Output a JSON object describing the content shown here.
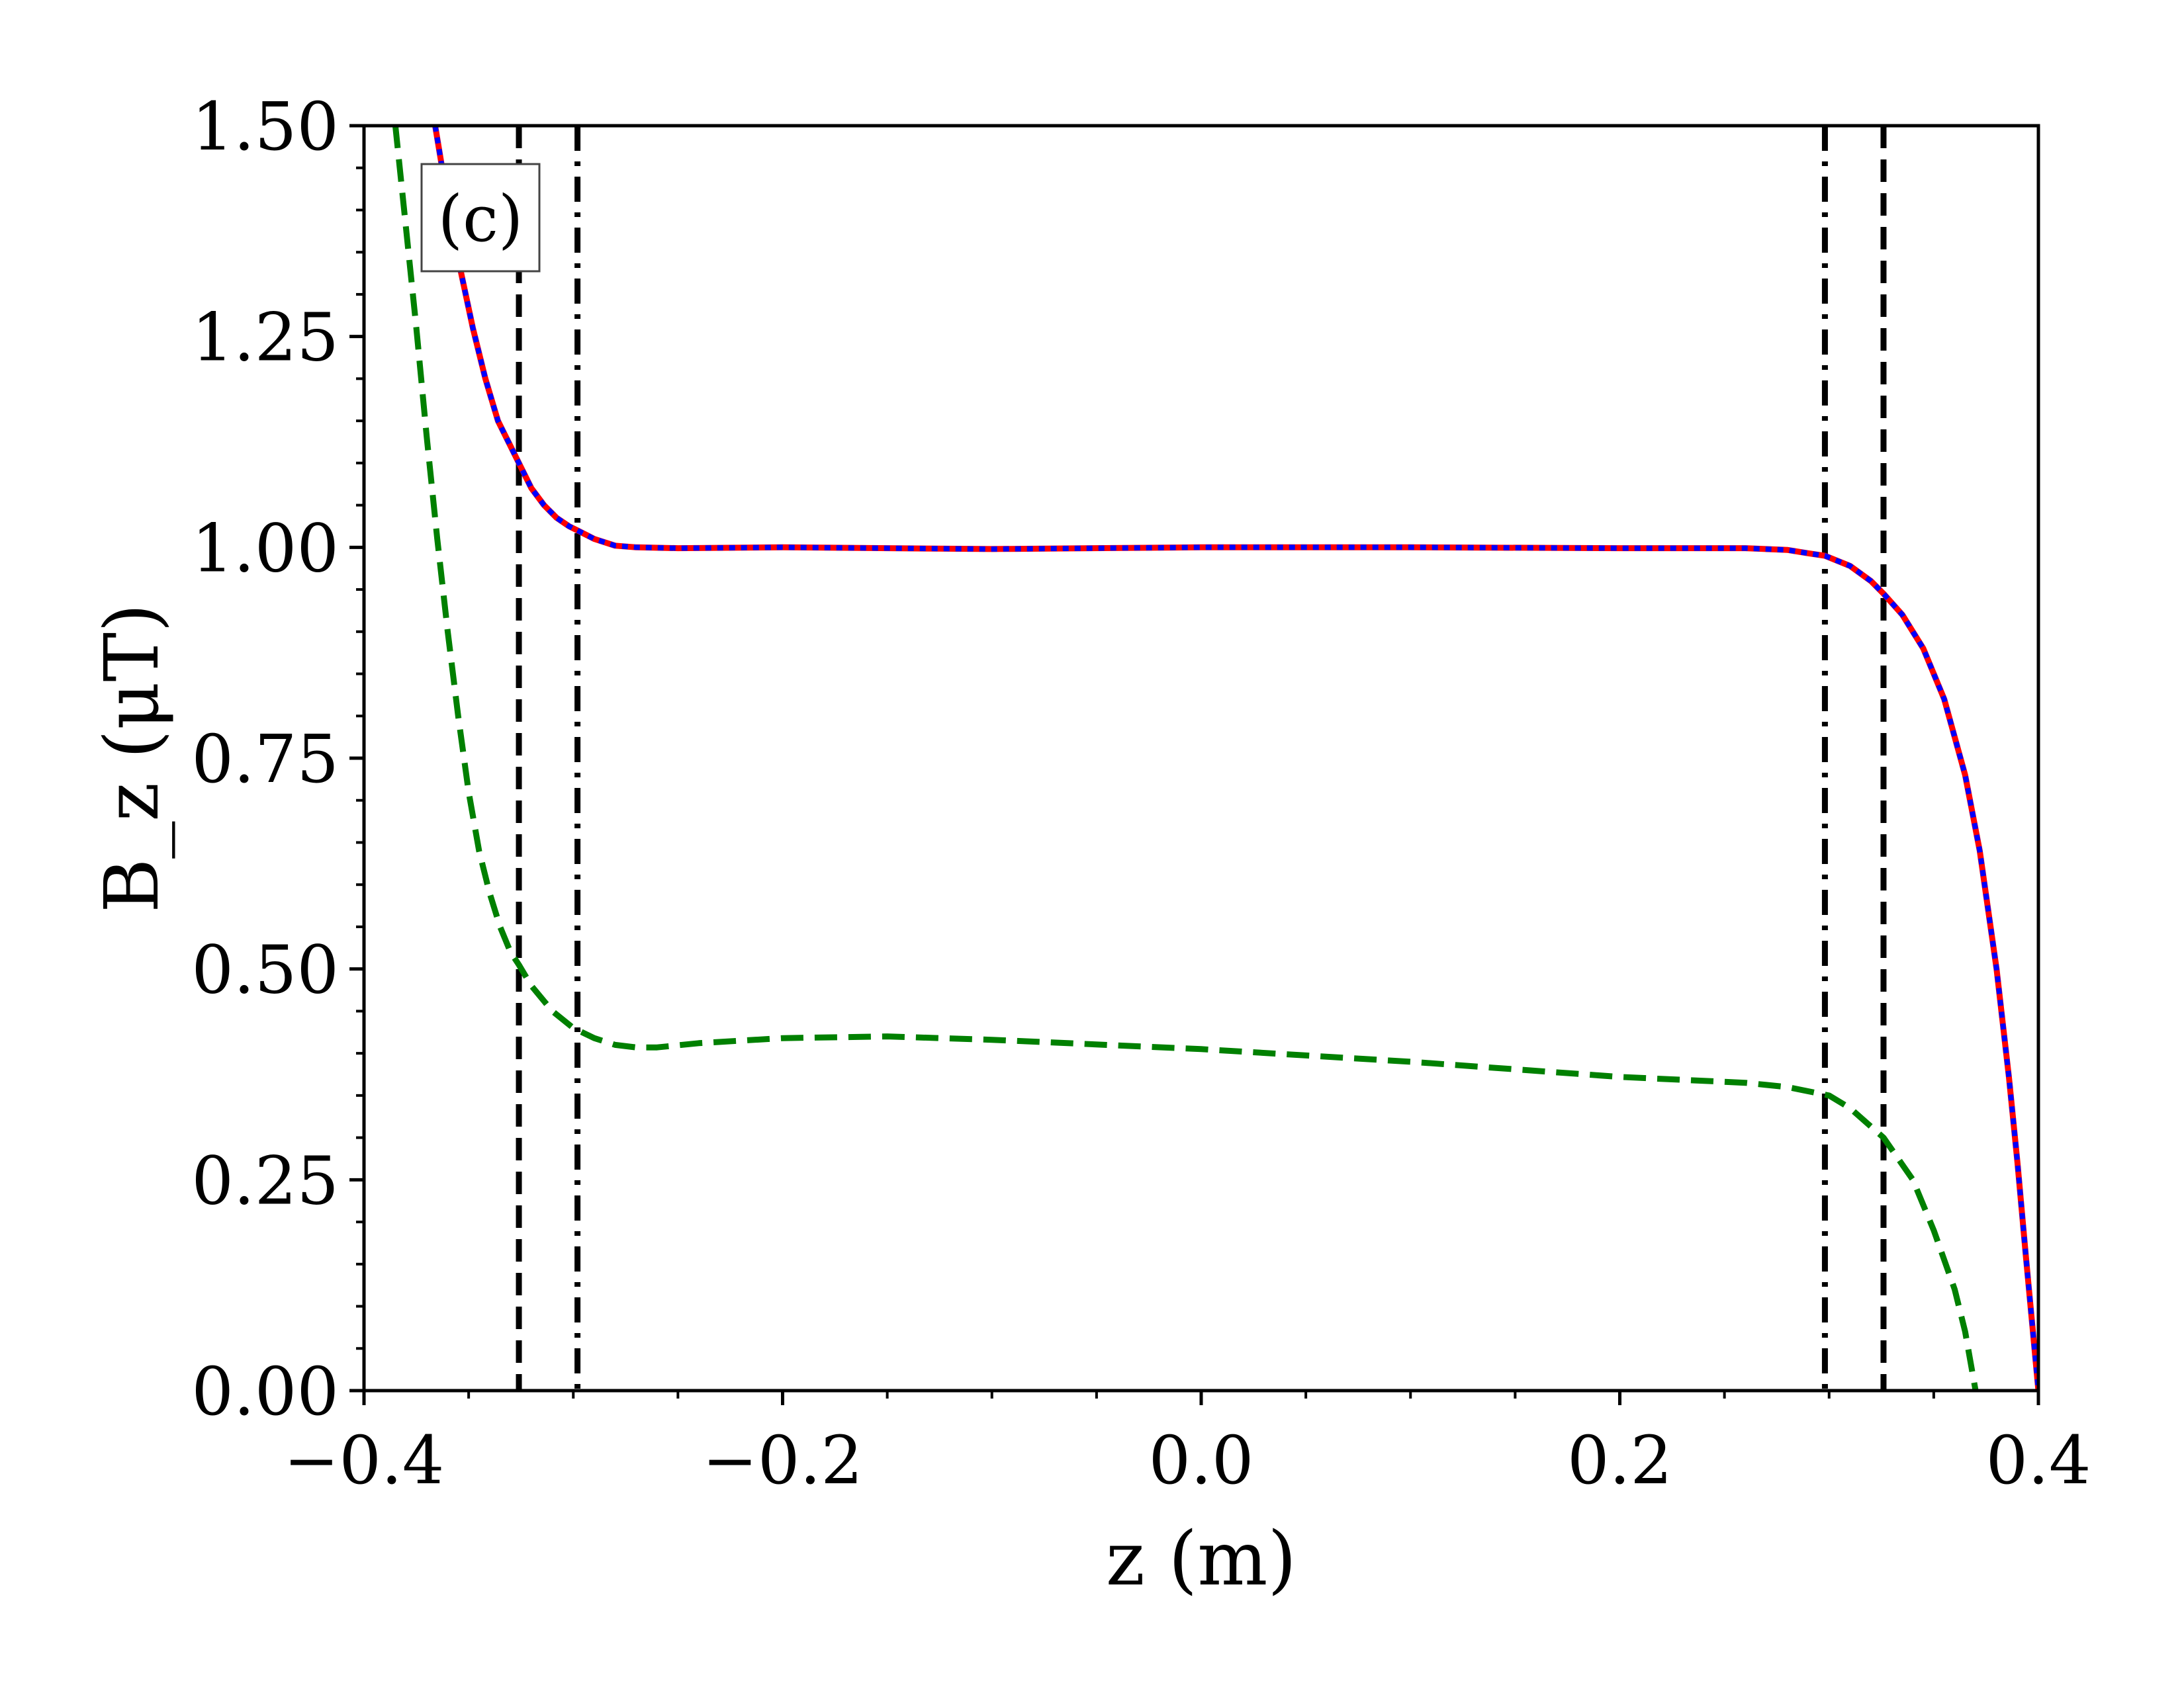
{
  "chart_data": {
    "type": "line",
    "panel_label": "(c)",
    "xlabel": "z (m)",
    "ylabel": "B_z (μT)",
    "xlim": [
      -0.4,
      0.4
    ],
    "ylim": [
      0.0,
      1.5
    ],
    "x_ticks": [
      {
        "value": -0.4,
        "label": "−0.4"
      },
      {
        "value": -0.2,
        "label": "−0.2"
      },
      {
        "value": 0.0,
        "label": "0.0"
      },
      {
        "value": 0.2,
        "label": "0.2"
      },
      {
        "value": 0.4,
        "label": "0.4"
      }
    ],
    "y_ticks": [
      {
        "value": 0.0,
        "label": "0.00"
      },
      {
        "value": 0.25,
        "label": "0.25"
      },
      {
        "value": 0.5,
        "label": "0.50"
      },
      {
        "value": 0.75,
        "label": "0.75"
      },
      {
        "value": 1.0,
        "label": "1.00"
      },
      {
        "value": 1.25,
        "label": "1.25"
      },
      {
        "value": 1.5,
        "label": "1.50"
      }
    ],
    "grid": false,
    "legend": "none",
    "vertical_lines": [
      {
        "x": -0.326,
        "style": "dashed",
        "color": "#000000"
      },
      {
        "x": -0.298,
        "style": "dashdot",
        "color": "#000000"
      },
      {
        "x": 0.298,
        "style": "dashdot",
        "color": "#000000"
      },
      {
        "x": 0.326,
        "style": "dashed",
        "color": "#000000"
      }
    ],
    "series": [
      {
        "style": "solid",
        "color": "#ff0000",
        "x": [
          -0.366,
          -0.36,
          -0.354,
          -0.348,
          -0.342,
          -0.336,
          -0.33,
          -0.326,
          -0.32,
          -0.314,
          -0.308,
          -0.302,
          -0.298,
          -0.29,
          -0.28,
          -0.27,
          -0.25,
          -0.2,
          -0.1,
          0.0,
          0.1,
          0.2,
          0.26,
          0.28,
          0.29,
          0.298,
          0.31,
          0.32,
          0.326,
          0.335,
          0.345,
          0.355,
          0.365,
          0.372,
          0.38,
          0.386,
          0.39,
          0.394,
          0.397,
          0.4
        ],
        "y": [
          1.5,
          1.41,
          1.33,
          1.26,
          1.2,
          1.15,
          1.12,
          1.1,
          1.07,
          1.05,
          1.035,
          1.025,
          1.02,
          1.01,
          1.002,
          1.0,
          0.999,
          1.0,
          0.998,
          1.0,
          1.0,
          0.999,
          0.999,
          0.997,
          0.993,
          0.99,
          0.978,
          0.96,
          0.945,
          0.92,
          0.88,
          0.82,
          0.73,
          0.64,
          0.5,
          0.37,
          0.27,
          0.16,
          0.08,
          0.0
        ]
      },
      {
        "style": "dotted",
        "color": "#0000ff",
        "x": [
          -0.366,
          -0.36,
          -0.354,
          -0.348,
          -0.342,
          -0.336,
          -0.33,
          -0.326,
          -0.32,
          -0.314,
          -0.308,
          -0.302,
          -0.298,
          -0.29,
          -0.28,
          -0.27,
          -0.25,
          -0.2,
          -0.1,
          0.0,
          0.1,
          0.2,
          0.26,
          0.28,
          0.29,
          0.298,
          0.31,
          0.32,
          0.326,
          0.335,
          0.345,
          0.355,
          0.365,
          0.372,
          0.38,
          0.386,
          0.39,
          0.394,
          0.397,
          0.4
        ],
        "y": [
          1.5,
          1.41,
          1.33,
          1.26,
          1.2,
          1.15,
          1.12,
          1.1,
          1.07,
          1.05,
          1.035,
          1.025,
          1.02,
          1.01,
          1.002,
          1.0,
          0.999,
          1.0,
          0.998,
          1.0,
          1.0,
          0.999,
          0.999,
          0.997,
          0.993,
          0.99,
          0.978,
          0.96,
          0.945,
          0.92,
          0.88,
          0.82,
          0.73,
          0.64,
          0.5,
          0.37,
          0.27,
          0.16,
          0.08,
          0.0
        ]
      },
      {
        "style": "dashed",
        "color": "#008000",
        "x": [
          -0.385,
          -0.38,
          -0.375,
          -0.37,
          -0.365,
          -0.36,
          -0.355,
          -0.35,
          -0.345,
          -0.34,
          -0.335,
          -0.33,
          -0.326,
          -0.32,
          -0.31,
          -0.3,
          -0.29,
          -0.28,
          -0.27,
          -0.26,
          -0.24,
          -0.2,
          -0.15,
          -0.1,
          0.0,
          0.1,
          0.2,
          0.26,
          0.28,
          0.3,
          0.31,
          0.326,
          0.34,
          0.35,
          0.36,
          0.365,
          0.37
        ],
        "y": [
          1.5,
          1.38,
          1.26,
          1.13,
          1.01,
          0.9,
          0.8,
          0.71,
          0.64,
          0.59,
          0.55,
          0.52,
          0.505,
          0.48,
          0.45,
          0.43,
          0.418,
          0.41,
          0.407,
          0.407,
          0.412,
          0.418,
          0.42,
          0.416,
          0.405,
          0.39,
          0.372,
          0.365,
          0.36,
          0.35,
          0.335,
          0.3,
          0.25,
          0.19,
          0.12,
          0.07,
          0.0
        ]
      }
    ]
  }
}
